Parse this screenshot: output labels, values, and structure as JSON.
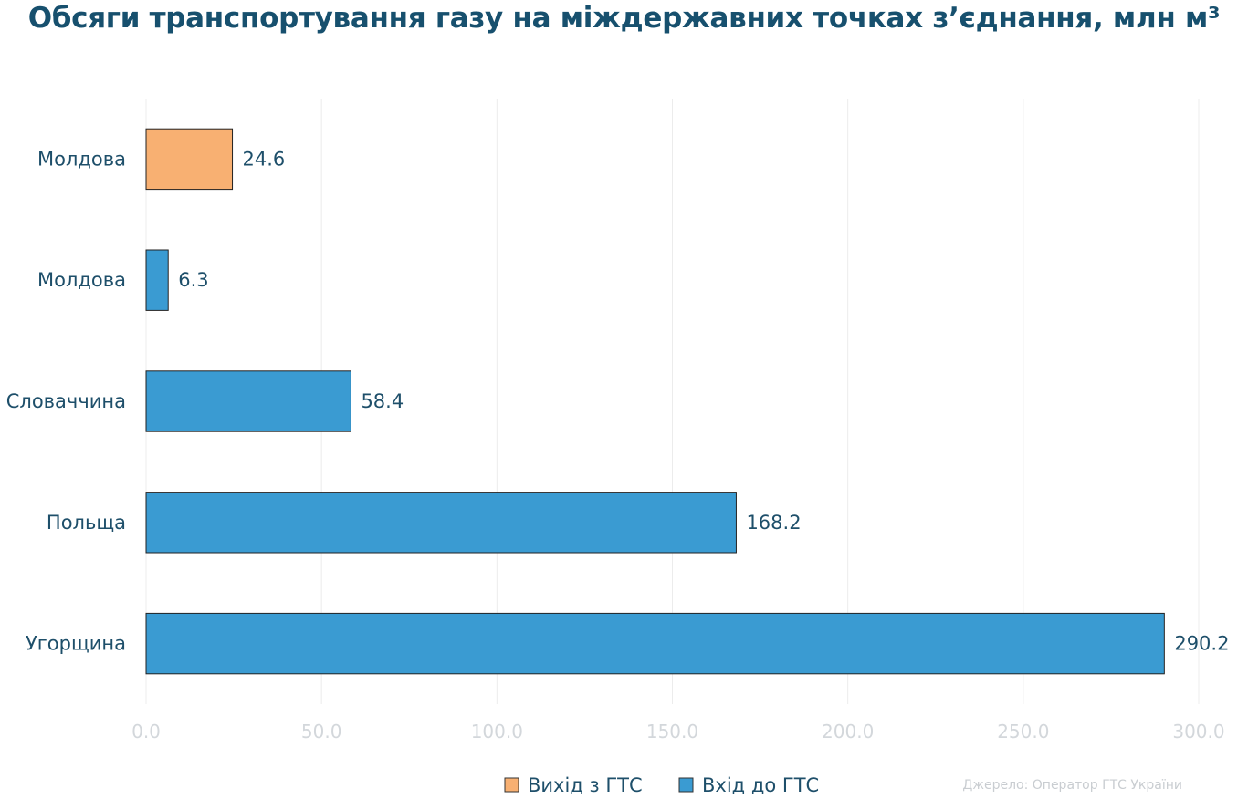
{
  "chart_data": {
    "type": "bar",
    "orientation": "horizontal",
    "title": "Обсяги транспортування газу на міждержавних точках з’єднання, млн м³",
    "categories": [
      "Молдова",
      "Молдова",
      "Словаччина",
      "Польща",
      "Угорщина"
    ],
    "values": [
      24.6,
      6.3,
      58.4,
      168.2,
      290.2
    ],
    "value_labels": [
      "24.6",
      "6.3",
      "58.4",
      "168.2",
      "290.2"
    ],
    "bar_series": [
      "Вихід з ГТС",
      "Вхід до ГТС",
      "Вхід до ГТС",
      "Вхід до ГТС",
      "Вхід до ГТС"
    ],
    "series": [
      {
        "name": "Вихід з ГТС",
        "color": "#f8b072"
      },
      {
        "name": "Вхід до ГТС",
        "color": "#3a9bd2"
      }
    ],
    "xlim": [
      0,
      300
    ],
    "xticks": [
      0,
      50,
      100,
      150,
      200,
      250,
      300
    ],
    "xtick_labels": [
      "0.0",
      "50.0",
      "100.0",
      "150.0",
      "200.0",
      "250.0",
      "300.0"
    ],
    "grid": "vertical",
    "legend_position": "bottom-center",
    "xlabel": "",
    "ylabel": "",
    "source": "Джерело: Оператор ГТС України"
  }
}
